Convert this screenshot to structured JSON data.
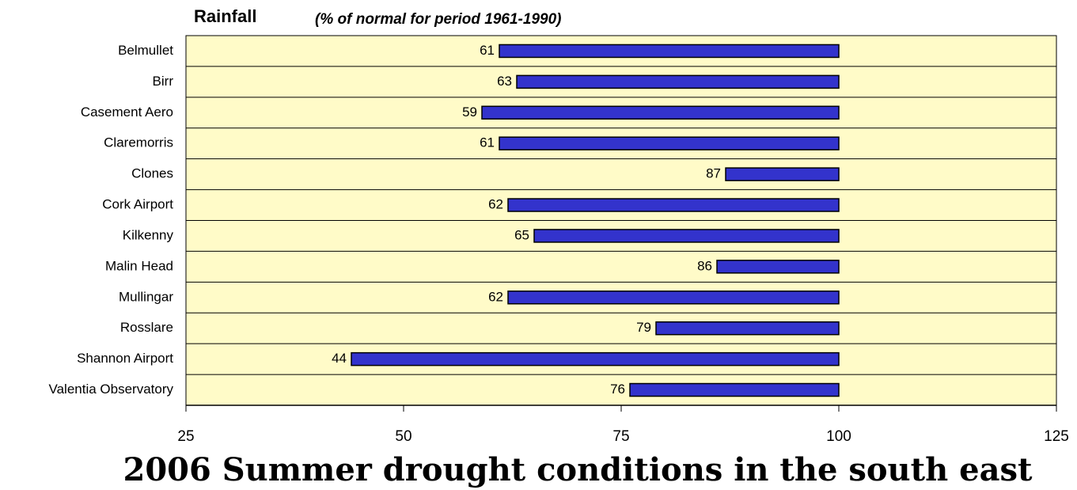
{
  "chart_data": {
    "type": "bar",
    "orientation": "horizontal",
    "title": "Rainfall",
    "subtitle": "(% of normal for period 1961-1990)",
    "caption": "2006 Summer drought conditions in the south east",
    "categories": [
      "Belmullet",
      "Birr",
      "Casement Aero",
      "Claremorris",
      "Clones",
      "Cork Airport",
      "Kilkenny",
      "Malin Head",
      "Mullingar",
      "Rosslare",
      "Shannon Airport",
      "Valentia Observatory"
    ],
    "values": [
      61,
      63,
      59,
      61,
      87,
      62,
      65,
      86,
      62,
      79,
      44,
      76
    ],
    "baseline": 100,
    "color": "#3333cc",
    "background": "#fffbc8",
    "xlim": [
      25,
      125
    ],
    "xticks": [
      25,
      50,
      75,
      100,
      125
    ]
  }
}
